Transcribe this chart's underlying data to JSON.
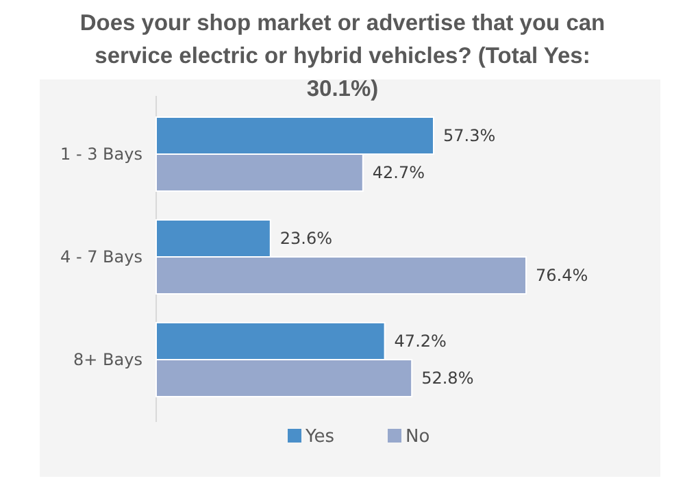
{
  "chart_data": {
    "type": "bar",
    "orientation": "horizontal",
    "title": "Does your shop market or advertise that you can service electric or hybrid vehicles? (Total Yes: 30.1%)",
    "categories": [
      "1 - 3 Bays",
      "4 - 7 Bays",
      "8+ Bays"
    ],
    "series": [
      {
        "name": "Yes",
        "color": "#4a8fc9",
        "values": [
          57.3,
          23.6,
          47.2
        ],
        "value_labels": [
          "57.3%",
          "23.6%",
          "47.2%"
        ]
      },
      {
        "name": "No",
        "color": "#97a8cc",
        "values": [
          42.7,
          76.4,
          52.8
        ],
        "value_labels": [
          "42.7%",
          "76.4%",
          "52.8%"
        ]
      }
    ],
    "legend": "bottom"
  }
}
